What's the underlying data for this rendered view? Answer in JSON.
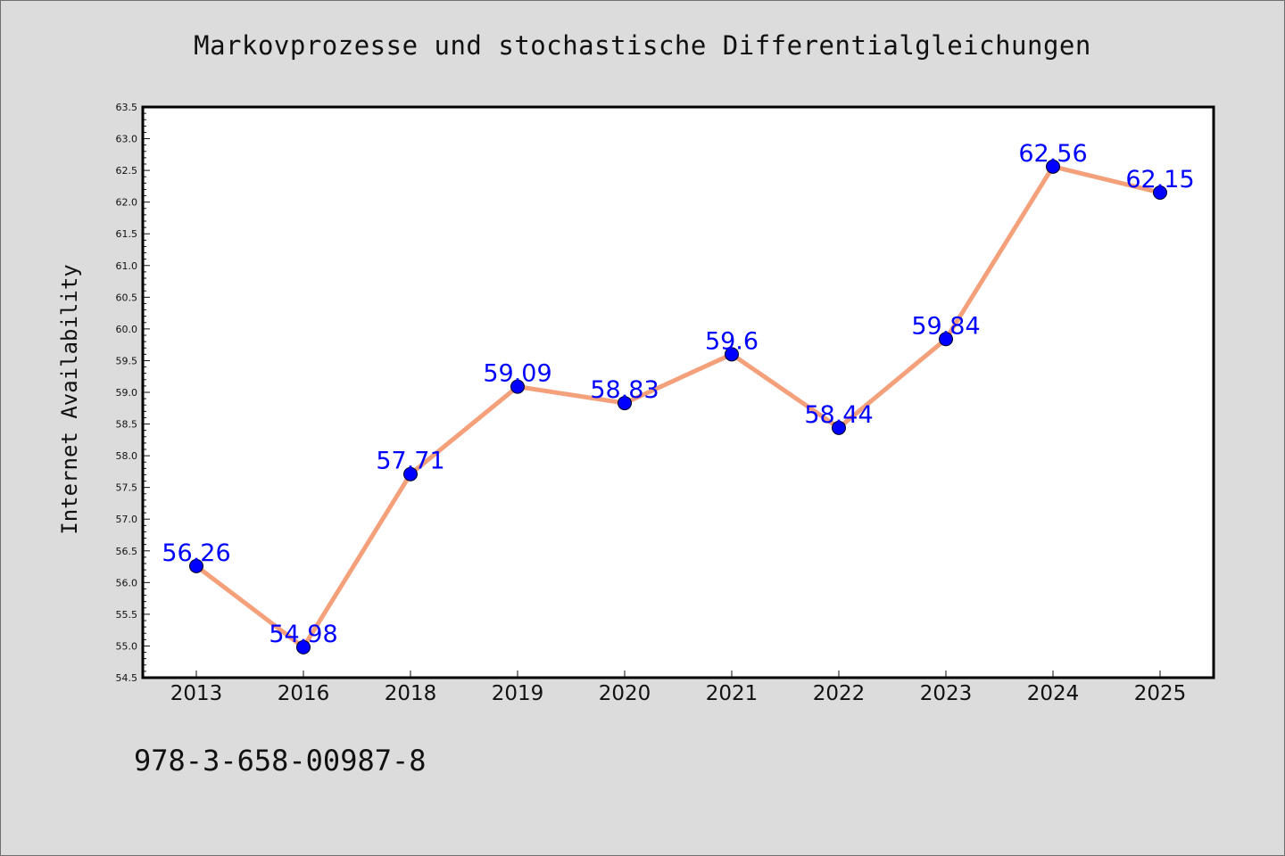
{
  "chart_data": {
    "type": "line",
    "title": "Markovprozesse und stochastische Differentialgleichungen",
    "xlabel": "",
    "ylabel": "Internet Availability",
    "categories": [
      "2013",
      "2016",
      "2018",
      "2019",
      "2020",
      "2021",
      "2022",
      "2023",
      "2024",
      "2025"
    ],
    "series": [
      {
        "values": [
          56.26,
          54.98,
          57.71,
          59.09,
          58.83,
          59.6,
          58.44,
          59.84,
          62.56,
          62.15
        ],
        "labels": [
          "56.26",
          "54.98",
          "57.71",
          "59.09",
          "58.83",
          "59.6",
          "58.44",
          "59.84",
          "62.56",
          "62.15"
        ]
      }
    ],
    "ylim": [
      54.5,
      63.5
    ],
    "yticks": [
      "54.5",
      "55.0",
      "55.5",
      "56.0",
      "56.5",
      "57.0",
      "57.5",
      "58.0",
      "58.5",
      "59.0",
      "59.5",
      "60.0",
      "60.5",
      "61.0",
      "61.5",
      "62.0",
      "62.5",
      "63.0",
      "63.5"
    ],
    "grid": false,
    "line_color": "#f4a07a",
    "marker_color": "#0000ff",
    "label_color": "#0000ff"
  },
  "footer": {
    "text": "978-3-658-00987-8"
  }
}
